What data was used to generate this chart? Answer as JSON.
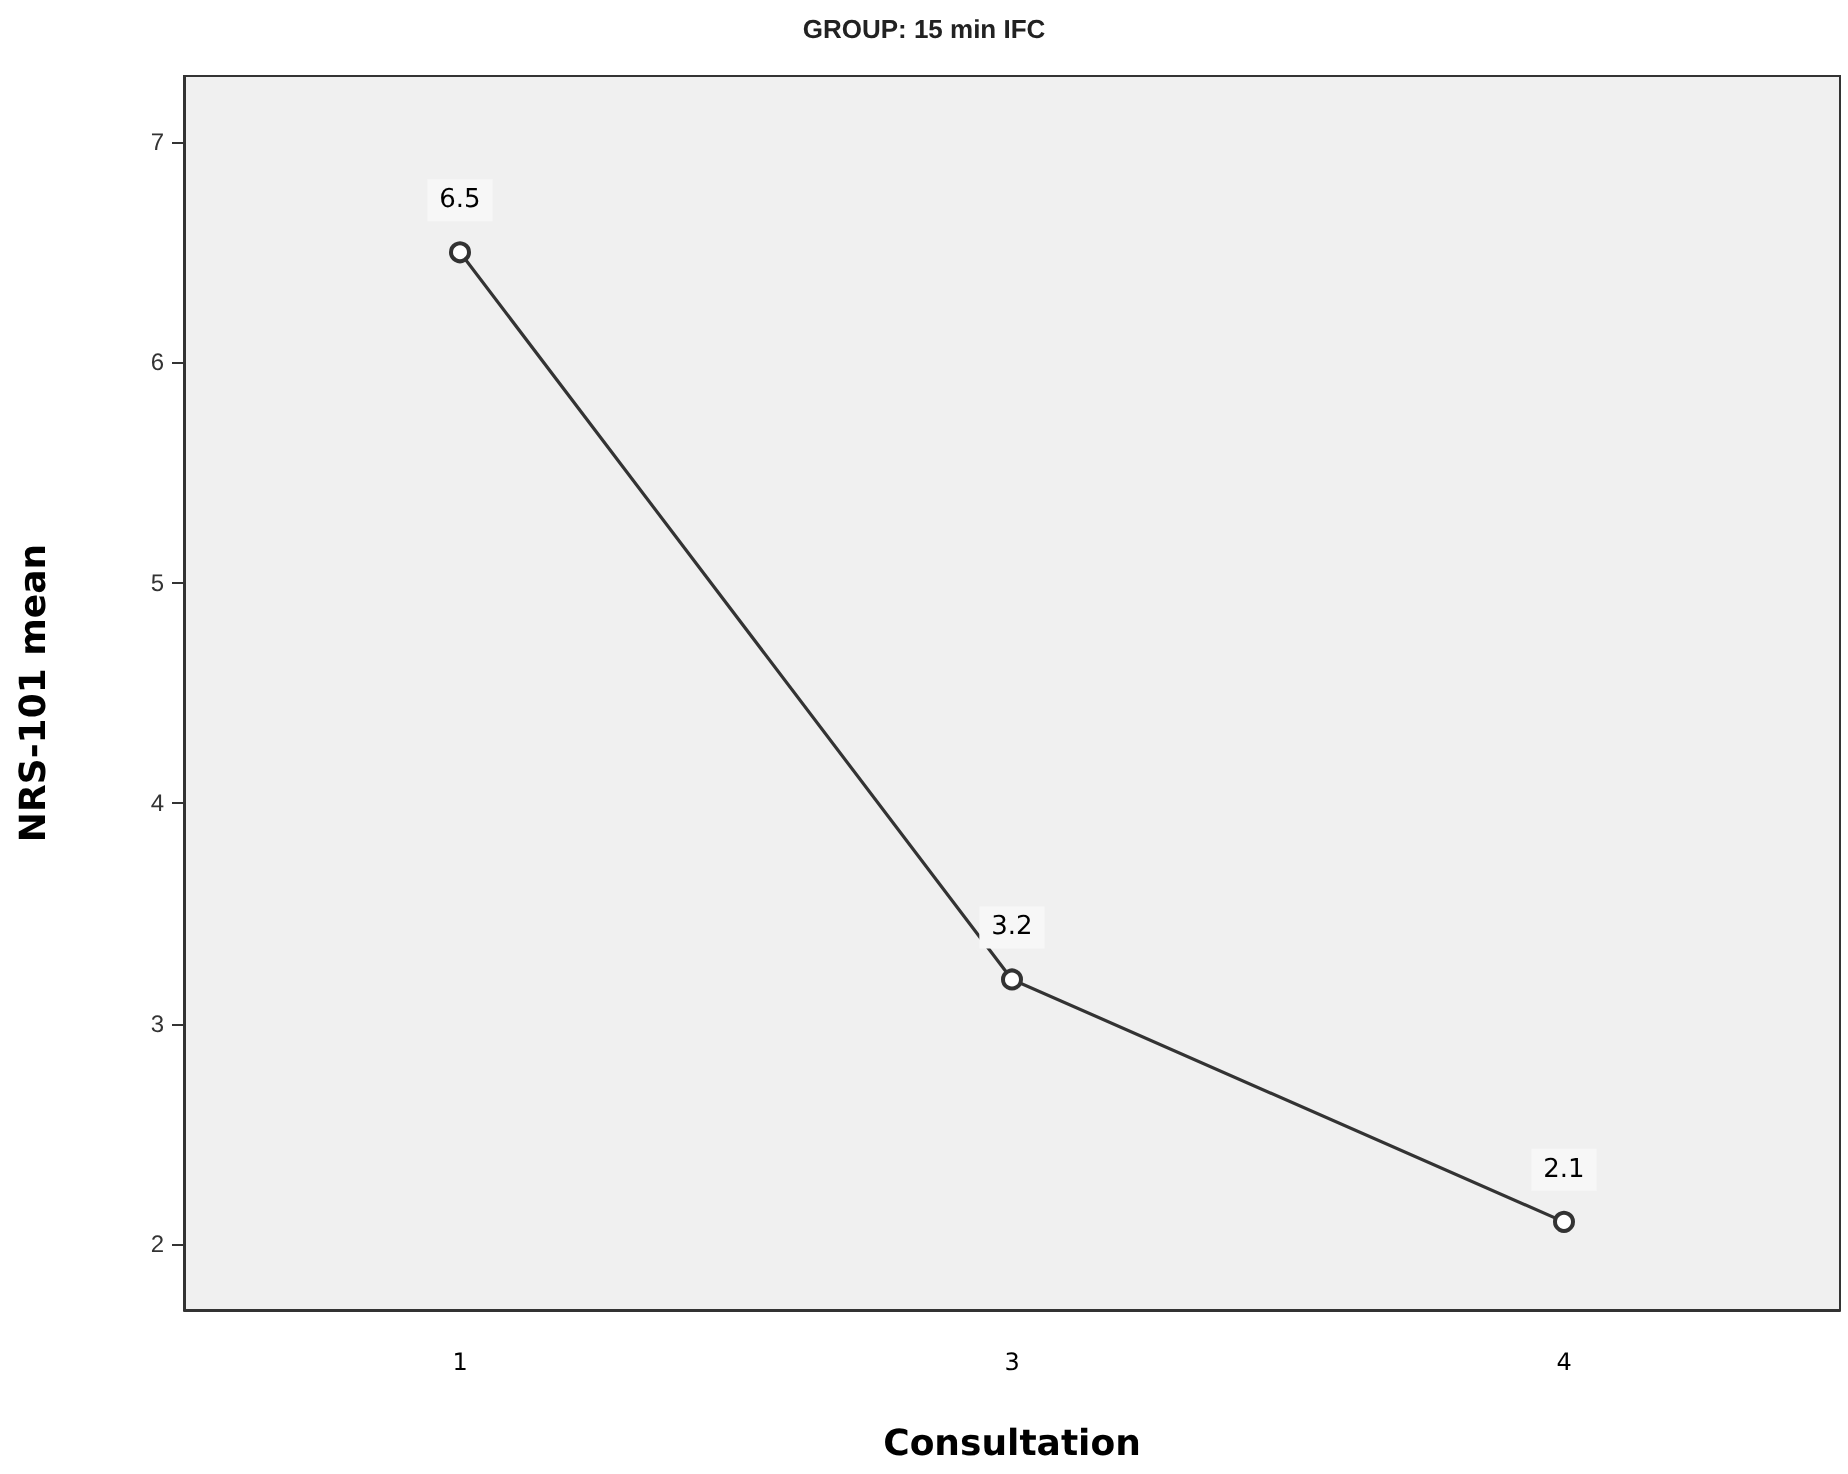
{
  "chart_data": {
    "type": "line",
    "title": "GROUP: 15 min IFC",
    "xlabel": "Consultation",
    "ylabel": "NRS-101 mean",
    "categories": [
      "1",
      "3",
      "4"
    ],
    "series": [
      {
        "color": "#333333",
        "values": [
          6.5,
          3.2,
          2.1
        ]
      }
    ],
    "ylim": [
      1.7,
      7.3
    ],
    "yticks": [
      2,
      3,
      4,
      5,
      6,
      7
    ],
    "data_labels": true,
    "marker": "circle",
    "line_style": "solid",
    "grid": false
  }
}
